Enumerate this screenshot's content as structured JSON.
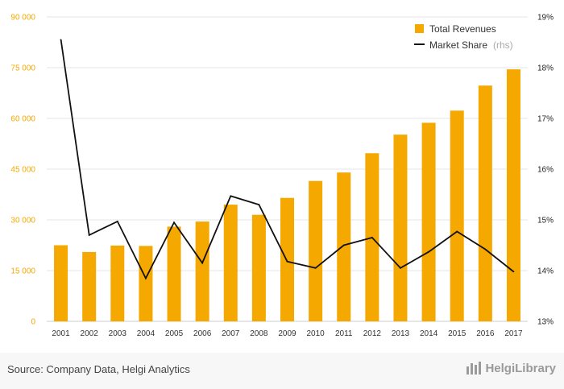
{
  "chart_data": {
    "type": "bar",
    "categories": [
      "2001",
      "2002",
      "2003",
      "2004",
      "2005",
      "2006",
      "2007",
      "2008",
      "2009",
      "2010",
      "2011",
      "2012",
      "2013",
      "2014",
      "2015",
      "2016",
      "2017"
    ],
    "series": [
      {
        "name": "Total Revenues",
        "type": "bar",
        "axis": "left",
        "color": "#f5a800",
        "values": [
          22500,
          20500,
          22400,
          22300,
          28000,
          29500,
          34500,
          31500,
          36500,
          41500,
          44000,
          49700,
          55200,
          58700,
          62300,
          69700,
          74500
        ]
      },
      {
        "name": "Market Share",
        "name_suffix": "(rhs)",
        "type": "line",
        "axis": "right",
        "color": "#111111",
        "values": [
          18.55,
          14.7,
          14.97,
          13.85,
          14.95,
          14.15,
          15.47,
          15.3,
          14.18,
          14.05,
          14.5,
          14.65,
          14.05,
          14.37,
          14.77,
          14.42,
          13.98
        ]
      }
    ],
    "y_left": {
      "ylim": [
        0,
        90000
      ],
      "ticks": [
        "0",
        "15 000",
        "30 000",
        "45 000",
        "60 000",
        "75 000",
        "90 000"
      ],
      "tick_values": [
        0,
        15000,
        30000,
        45000,
        60000,
        75000,
        90000
      ],
      "color": "#f5a800"
    },
    "y_right": {
      "ylim": [
        13,
        19
      ],
      "ticks": [
        "13%",
        "14%",
        "15%",
        "16%",
        "17%",
        "18%",
        "19%"
      ],
      "tick_values": [
        13,
        14,
        15,
        16,
        17,
        18,
        19
      ]
    },
    "grid": true,
    "legend": "top-right"
  },
  "footer": {
    "source": "Source: Company Data, Helgi Analytics",
    "brand": "HelgiLibrary"
  }
}
